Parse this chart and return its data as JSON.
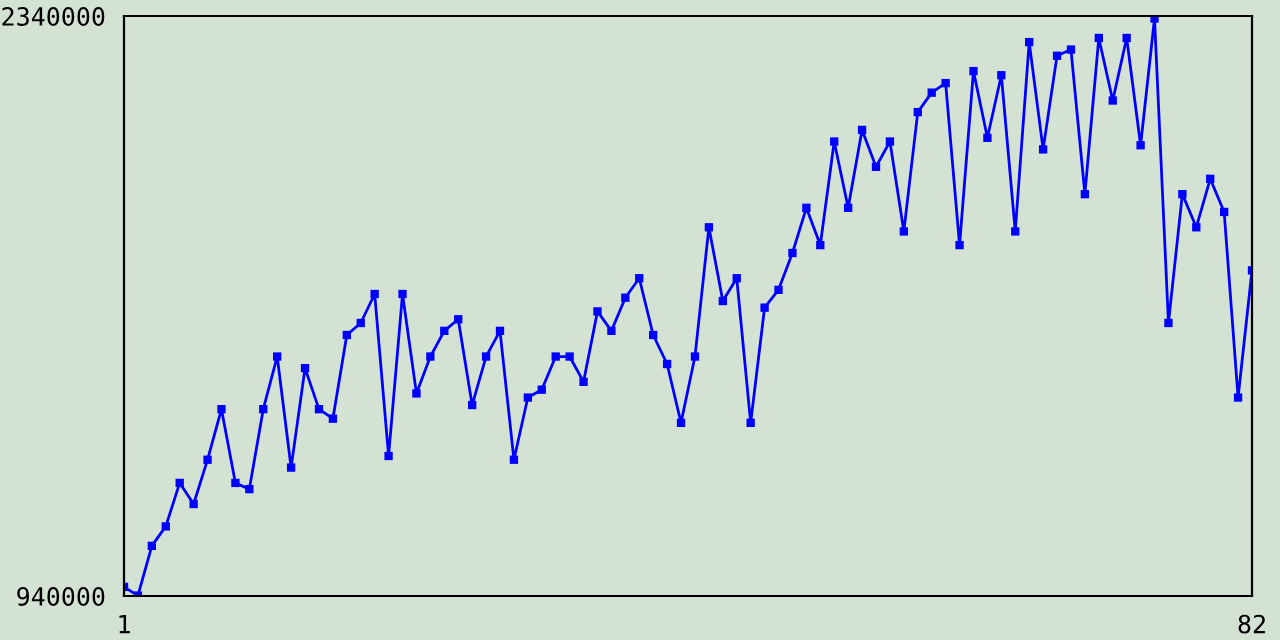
{
  "chart_data": {
    "type": "line",
    "x": [
      1,
      2,
      3,
      4,
      5,
      6,
      7,
      8,
      9,
      10,
      11,
      12,
      13,
      14,
      15,
      16,
      17,
      18,
      19,
      20,
      21,
      22,
      23,
      24,
      25,
      26,
      27,
      28,
      29,
      30,
      31,
      32,
      33,
      34,
      35,
      36,
      37,
      38,
      39,
      40,
      41,
      42,
      43,
      44,
      45,
      46,
      47,
      48,
      49,
      50,
      51,
      52,
      53,
      54,
      55,
      56,
      57,
      58,
      59,
      60,
      61,
      62,
      63,
      64,
      65,
      66,
      67,
      68,
      69,
      70,
      71,
      72,
      73,
      74,
      75,
      76,
      77,
      78,
      79,
      80,
      81,
      82
    ],
    "series": [
      {
        "color": "#0000ff",
        "values": [
          962000,
          941000,
          1061000,
          1108000,
          1213000,
          1162000,
          1269000,
          1391000,
          1213000,
          1198000,
          1391000,
          1518000,
          1250000,
          1490000,
          1391000,
          1368000,
          1570000,
          1599000,
          1669000,
          1278000,
          1669000,
          1429000,
          1518000,
          1580000,
          1608000,
          1401000,
          1518000,
          1580000,
          1269000,
          1419000,
          1438000,
          1518000,
          1518000,
          1457000,
          1627000,
          1580000,
          1660000,
          1707000,
          1570000,
          1500000,
          1358000,
          1518000,
          1830000,
          1652000,
          1707000,
          1358000,
          1636000,
          1679000,
          1768000,
          1877000,
          1787000,
          2037000,
          1877000,
          2065000,
          1976000,
          2037000,
          1820000,
          2108000,
          2155000,
          2178000,
          1787000,
          2207000,
          2046000,
          2197000,
          1820000,
          2277000,
          2018000,
          2244000,
          2259000,
          1910000,
          2287000,
          2136000,
          2287000,
          2028000,
          2334000,
          1599000,
          1910000,
          1830000,
          1947000,
          1867000,
          1419000,
          1726000
        ]
      }
    ],
    "xlim": [
      1,
      82
    ],
    "xticks": [
      1,
      82
    ],
    "ylim": [
      940000,
      2340000
    ],
    "yticks": [
      940000,
      2340000
    ],
    "marker": "square",
    "line_style": "solid",
    "legend": false
  }
}
